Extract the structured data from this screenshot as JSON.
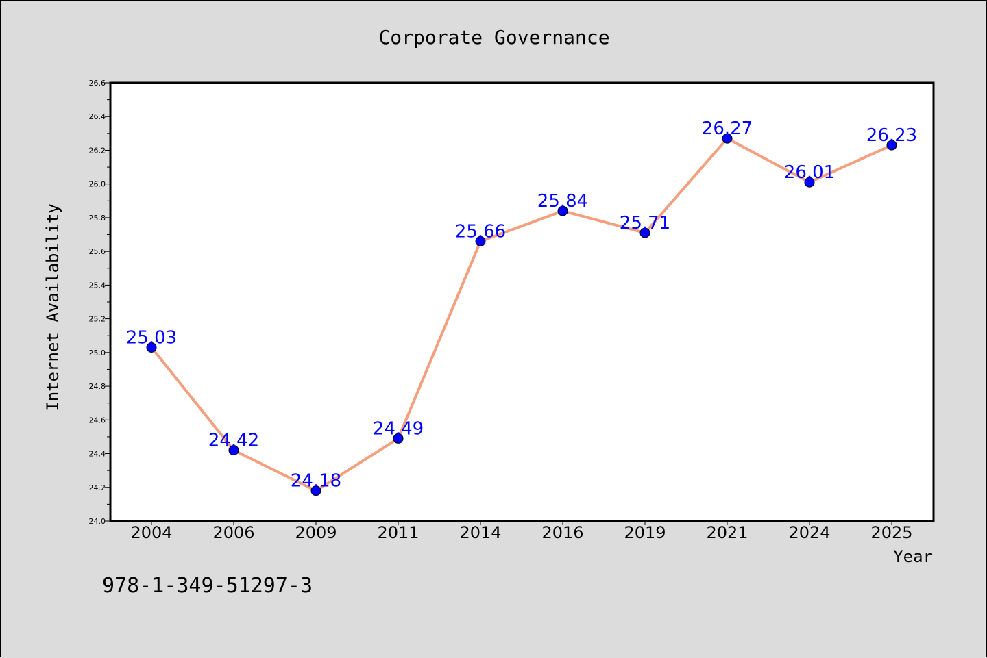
{
  "chart_data": {
    "type": "line",
    "title": "Corporate Governance",
    "xlabel": "Year",
    "ylabel": "Internet Availability",
    "categories": [
      "2004",
      "2006",
      "2009",
      "2011",
      "2014",
      "2016",
      "2019",
      "2021",
      "2024",
      "2025"
    ],
    "series": [
      {
        "values": [
          25.03,
          24.42,
          24.18,
          24.49,
          25.66,
          25.84,
          25.71,
          26.27,
          26.01,
          26.23
        ]
      }
    ],
    "ylim": [
      24.0,
      26.6
    ],
    "yticks": [
      "24.0",
      "24.2",
      "24.4",
      "24.6",
      "24.8",
      "25.0",
      "25.2",
      "25.4",
      "25.6",
      "25.8",
      "26.0",
      "26.2",
      "26.4",
      "26.6"
    ],
    "grid": false,
    "data_labels": true,
    "colors": {
      "line": "#f4a07e",
      "marker": "#0000ff",
      "label": "#0000ff",
      "background": "#dcdcdc",
      "plot_bg": "#ffffff"
    }
  },
  "annotation": "978-1-349-51297-3"
}
